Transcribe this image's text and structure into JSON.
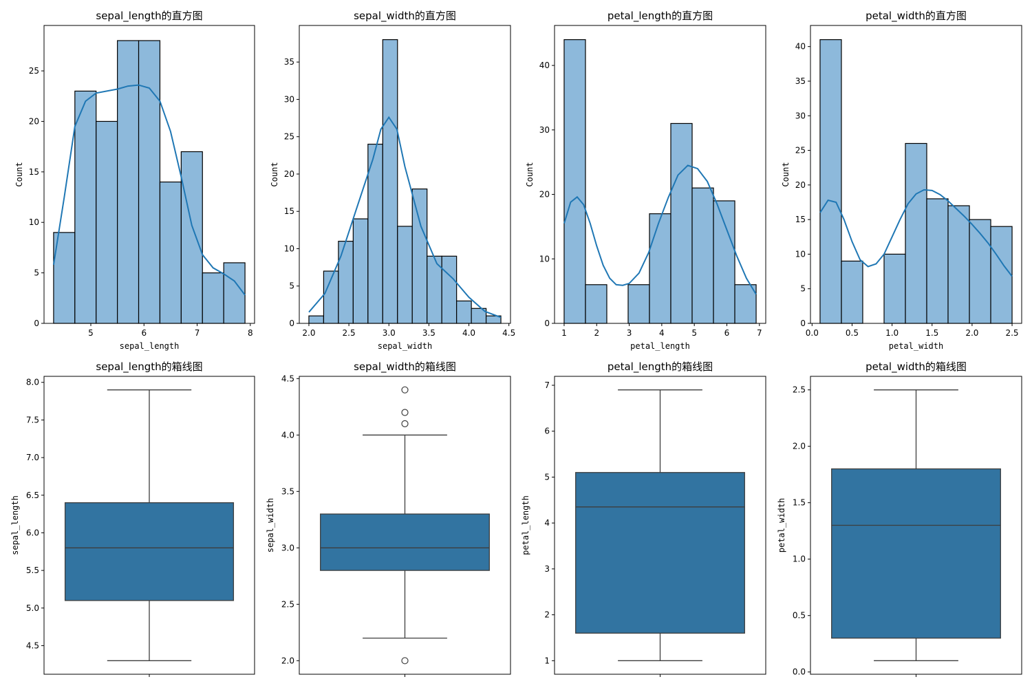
{
  "figure": {
    "background": "#ffffff",
    "bar_fill": "#8db9db",
    "box_fill": "#3274a1",
    "kde_color": "#1f77b4",
    "edge_color": "#000000",
    "line_color": "#3d3d3d"
  },
  "chart_data": [
    {
      "type": "histogram",
      "title": "sepal_length的直方图",
      "xlabel": "sepal_length",
      "ylabel": "Count",
      "xlim": [
        4.12,
        8.08
      ],
      "ylim": [
        0,
        29.5
      ],
      "xticks": [
        5,
        6,
        7,
        8
      ],
      "xtick_labels": [
        "5",
        "6",
        "7",
        "8"
      ],
      "yticks": [
        0,
        5,
        10,
        15,
        20,
        25
      ],
      "ytick_labels": [
        "0",
        "5",
        "10",
        "15",
        "20",
        "25"
      ],
      "bin_edges": [
        4.3,
        4.7,
        5.1,
        5.5,
        5.9,
        6.3,
        6.7,
        7.1,
        7.5,
        7.9
      ],
      "counts": [
        9,
        23,
        20,
        28,
        28,
        14,
        17,
        5,
        6
      ],
      "kde": {
        "x": [
          4.3,
          4.5,
          4.7,
          4.9,
          5.1,
          5.3,
          5.5,
          5.7,
          5.9,
          6.1,
          6.3,
          6.5,
          6.7,
          6.9,
          7.1,
          7.3,
          7.5,
          7.7,
          7.9
        ],
        "y": [
          5.8,
          12.5,
          19.5,
          22.0,
          22.8,
          23.0,
          23.2,
          23.5,
          23.6,
          23.3,
          22.0,
          19.0,
          14.5,
          9.7,
          6.8,
          5.5,
          4.9,
          4.2,
          2.8
        ]
      }
    },
    {
      "type": "histogram",
      "title": "sepal_width的直方图",
      "xlabel": "sepal_width",
      "ylabel": "Count",
      "xlim": [
        1.88,
        4.52
      ],
      "ylim": [
        0,
        39.9
      ],
      "xticks": [
        2.0,
        2.5,
        3.0,
        3.5,
        4.0,
        4.5
      ],
      "xtick_labels": [
        "2.0",
        "2.5",
        "3.0",
        "3.5",
        "4.0",
        "4.5"
      ],
      "yticks": [
        0,
        5,
        10,
        15,
        20,
        25,
        30,
        35
      ],
      "ytick_labels": [
        "0",
        "5",
        "10",
        "15",
        "20",
        "25",
        "30",
        "35"
      ],
      "bin_edges": [
        2.0,
        2.1846,
        2.3692,
        2.5538,
        2.7385,
        2.9231,
        3.1077,
        3.2923,
        3.4769,
        3.6615,
        3.8462,
        4.0308,
        4.2154,
        4.4
      ],
      "counts": [
        1,
        7,
        11,
        14,
        24,
        38,
        13,
        18,
        9,
        9,
        3,
        2,
        1
      ],
      "kde": {
        "x": [
          2.0,
          2.2,
          2.4,
          2.6,
          2.8,
          2.9,
          3.0,
          3.1,
          3.2,
          3.4,
          3.6,
          3.8,
          4.0,
          4.2,
          4.4
        ],
        "y": [
          1.5,
          4.0,
          9.0,
          15.5,
          22.0,
          26.0,
          27.6,
          26.0,
          21.0,
          13.0,
          8.0,
          6.0,
          3.5,
          1.6,
          0.8
        ]
      }
    },
    {
      "type": "histogram",
      "title": "petal_length的直方图",
      "xlabel": "petal_length",
      "ylabel": "Count",
      "xlim": [
        0.705,
        7.195
      ],
      "ylim": [
        0,
        46.2
      ],
      "xticks": [
        1,
        2,
        3,
        4,
        5,
        6,
        7
      ],
      "xtick_labels": [
        "1",
        "2",
        "3",
        "4",
        "5",
        "6",
        "7"
      ],
      "yticks": [
        0,
        10,
        20,
        30,
        40
      ],
      "ytick_labels": [
        "0",
        "10",
        "20",
        "30",
        "40"
      ],
      "bin_edges": [
        1.0,
        1.6556,
        2.3111,
        2.9667,
        3.6222,
        4.2778,
        4.9333,
        5.5889,
        6.2444,
        6.9
      ],
      "counts": [
        44,
        6,
        0,
        6,
        17,
        31,
        21,
        19,
        6
      ],
      "kde": {
        "x": [
          1.0,
          1.2,
          1.4,
          1.6,
          1.8,
          2.0,
          2.2,
          2.4,
          2.6,
          2.8,
          3.0,
          3.3,
          3.6,
          3.9,
          4.2,
          4.5,
          4.8,
          5.1,
          5.4,
          5.7,
          6.0,
          6.3,
          6.6,
          6.9
        ],
        "y": [
          15.5,
          18.8,
          19.6,
          18.4,
          15.5,
          12.0,
          9.0,
          7.0,
          6.0,
          5.9,
          6.2,
          7.8,
          11.0,
          15.5,
          19.5,
          23.0,
          24.5,
          24.0,
          22.0,
          18.5,
          14.5,
          10.5,
          7.0,
          4.5
        ]
      }
    },
    {
      "type": "histogram",
      "title": "petal_width的直方图",
      "xlabel": "petal_width",
      "ylabel": "Count",
      "xlim": [
        -0.02,
        2.62
      ],
      "ylim": [
        0,
        43.05
      ],
      "xticks": [
        0.0,
        0.5,
        1.0,
        1.5,
        2.0,
        2.5
      ],
      "xtick_labels": [
        "0.0",
        "0.5",
        "1.0",
        "1.5",
        "2.0",
        "2.5"
      ],
      "yticks": [
        0,
        5,
        10,
        15,
        20,
        25,
        30,
        35,
        40
      ],
      "ytick_labels": [
        "0",
        "5",
        "10",
        "15",
        "20",
        "25",
        "30",
        "35",
        "40"
      ],
      "bin_edges": [
        0.1,
        0.3667,
        0.6333,
        0.9,
        1.1667,
        1.4333,
        1.7,
        1.9667,
        2.2333,
        2.5
      ],
      "counts": [
        41,
        9,
        0,
        10,
        26,
        18,
        17,
        15,
        14
      ],
      "kde": {
        "x": [
          0.1,
          0.2,
          0.3,
          0.4,
          0.5,
          0.6,
          0.7,
          0.8,
          0.9,
          1.0,
          1.1,
          1.2,
          1.3,
          1.4,
          1.5,
          1.6,
          1.7,
          1.8,
          1.9,
          2.0,
          2.1,
          2.2,
          2.3,
          2.4,
          2.5
        ],
        "y": [
          16.0,
          17.8,
          17.5,
          15.0,
          11.8,
          9.2,
          8.2,
          8.6,
          10.0,
          12.5,
          15.0,
          17.3,
          18.7,
          19.3,
          19.2,
          18.6,
          17.7,
          16.6,
          15.5,
          14.3,
          13.0,
          11.6,
          10.0,
          8.3,
          6.8
        ]
      }
    },
    {
      "type": "boxplot",
      "title": "sepal_length的箱线图",
      "ylabel": "sepal_length",
      "ylim": [
        4.12,
        8.08
      ],
      "yticks": [
        4.5,
        5.0,
        5.5,
        6.0,
        6.5,
        7.0,
        7.5,
        8.0
      ],
      "ytick_labels": [
        "4.5",
        "5.0",
        "5.5",
        "6.0",
        "6.5",
        "7.0",
        "7.5",
        "8.0"
      ],
      "whisker_low": 4.3,
      "q1": 5.1,
      "median": 5.8,
      "q3": 6.4,
      "whisker_high": 7.9,
      "outliers": []
    },
    {
      "type": "boxplot",
      "title": "sepal_width的箱线图",
      "ylabel": "sepal_width",
      "ylim": [
        1.88,
        4.52
      ],
      "yticks": [
        2.0,
        2.5,
        3.0,
        3.5,
        4.0,
        4.5
      ],
      "ytick_labels": [
        "2.0",
        "2.5",
        "3.0",
        "3.5",
        "4.0",
        "4.5"
      ],
      "whisker_low": 2.2,
      "q1": 2.8,
      "median": 3.0,
      "q3": 3.3,
      "whisker_high": 4.0,
      "outliers": [
        2.0,
        4.1,
        4.2,
        4.4
      ]
    },
    {
      "type": "boxplot",
      "title": "petal_length的箱线图",
      "ylabel": "petal_length",
      "ylim": [
        0.705,
        7.195
      ],
      "yticks": [
        1,
        2,
        3,
        4,
        5,
        6,
        7
      ],
      "ytick_labels": [
        "1",
        "2",
        "3",
        "4",
        "5",
        "6",
        "7"
      ],
      "whisker_low": 1.0,
      "q1": 1.6,
      "median": 4.35,
      "q3": 5.1,
      "whisker_high": 6.9,
      "outliers": []
    },
    {
      "type": "boxplot",
      "title": "petal_width的箱线图",
      "ylabel": "petal_width",
      "ylim": [
        -0.02,
        2.62
      ],
      "yticks": [
        0.0,
        0.5,
        1.0,
        1.5,
        2.0,
        2.5
      ],
      "ytick_labels": [
        "0.0",
        "0.5",
        "1.0",
        "1.5",
        "2.0",
        "2.5"
      ],
      "whisker_low": 0.1,
      "q1": 0.3,
      "median": 1.3,
      "q3": 1.8,
      "whisker_high": 2.5,
      "outliers": []
    }
  ]
}
